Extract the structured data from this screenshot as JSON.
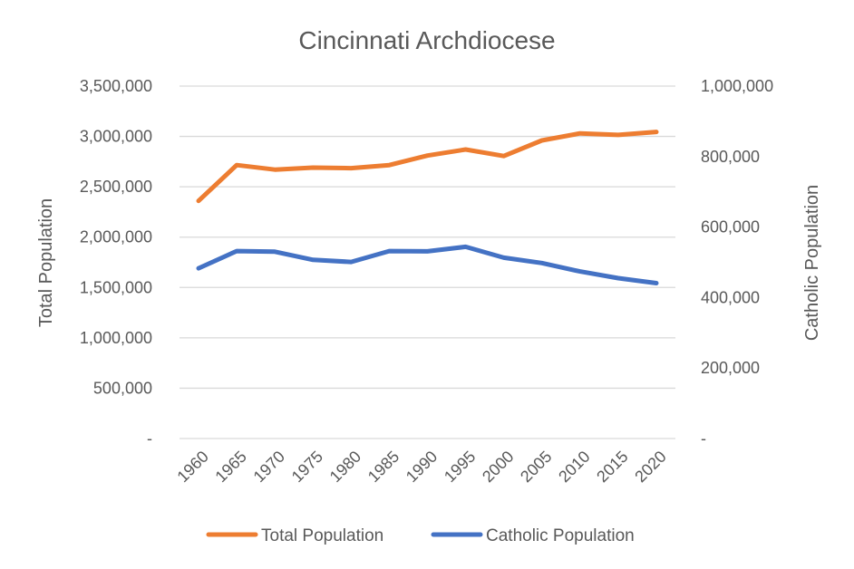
{
  "chart_data": {
    "type": "line",
    "title": "Cincinnati Archdiocese",
    "categories": [
      "1960",
      "1965",
      "1970",
      "1975",
      "1980",
      "1985",
      "1990",
      "1995",
      "2000",
      "2005",
      "2010",
      "2015",
      "2020"
    ],
    "series": [
      {
        "name": "Total Population",
        "axis": "left",
        "color": "#ED7D31",
        "values": [
          2360000,
          2715000,
          2670000,
          2690000,
          2685000,
          2715000,
          2810000,
          2870000,
          2805000,
          2960000,
          3030000,
          3015000,
          3045000
        ]
      },
      {
        "name": "Catholic Population",
        "axis": "right",
        "color": "#4472C4",
        "values": [
          483000,
          532000,
          530000,
          507000,
          501000,
          532000,
          531000,
          544000,
          513000,
          498000,
          474000,
          455000,
          441000
        ]
      }
    ],
    "y_left": {
      "label": "Total Population",
      "range": [
        0,
        3500000
      ],
      "ticks": [
        "-",
        "500,000",
        "1,000,000",
        "1,500,000",
        "2,000,000",
        "2,500,000",
        "3,000,000",
        "3,500,000"
      ]
    },
    "y_right": {
      "label": "Catholic Population",
      "range": [
        0,
        1000000
      ],
      "ticks": [
        "-",
        "200,000",
        "400,000",
        "600,000",
        "800,000",
        "1,000,000"
      ]
    },
    "grid": true,
    "legend_position": "bottom"
  }
}
